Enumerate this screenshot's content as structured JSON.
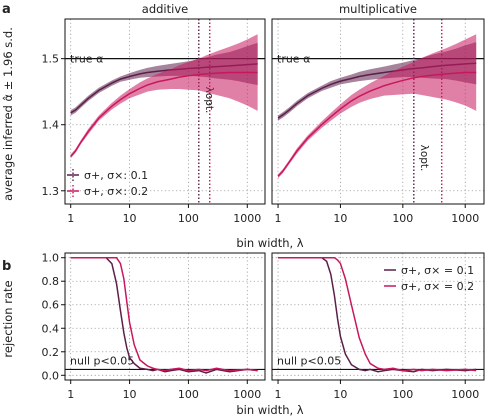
{
  "figure": {
    "panel_a_letter": "a",
    "panel_b_letter": "b",
    "facet_titles": [
      "additive",
      "multiplicative"
    ],
    "xlabel": "bin width, λ",
    "ylabel_a": "average inferred α̂ ± 1.96 s.d.",
    "ylabel_b": "rejection rate",
    "true_alpha_label": "true α",
    "null_label": "null p<0.05",
    "lambda_opt_label": "λopt.",
    "colors": {
      "dark": "#5b1f4a",
      "light": "#c8175d"
    }
  },
  "chart_data": [
    {
      "type": "line",
      "panel": "a",
      "x_scale": "log",
      "xlim": [
        0.8,
        2000
      ],
      "ylim": [
        1.28,
        1.56
      ],
      "x_ticks": [
        1,
        10,
        100,
        1000
      ],
      "x_tick_labels": [
        "1",
        "10",
        "100",
        "1000"
      ],
      "y_ticks": [
        1.3,
        1.4,
        1.5
      ],
      "y_tick_labels": [
        "1.3",
        "1.4",
        "1.5"
      ],
      "hline": 1.5,
      "legend": {
        "position": "bottom-left",
        "entries": [
          "σ+, σ×: 0.1",
          "σ+, σ×: 0.2"
        ]
      },
      "facets": [
        {
          "title": "additive",
          "lambda_opt": [
            150,
            230
          ],
          "series": [
            {
              "name": "σ+, σ×: 0.1",
              "color": "#5b1f4a",
              "x": [
                1,
                1.2,
                1.5,
                2,
                3,
                5,
                7,
                10,
                15,
                20,
                30,
                50,
                70,
                100,
                150,
                200,
                300,
                500,
                700,
                1000,
                1500
              ],
              "y": [
                1.418,
                1.422,
                1.43,
                1.44,
                1.452,
                1.463,
                1.469,
                1.473,
                1.477,
                1.479,
                1.481,
                1.483,
                1.484,
                1.485,
                1.486,
                1.487,
                1.488,
                1.489,
                1.49,
                1.491,
                1.492
              ],
              "ci": [
                0.004,
                0.004,
                0.004,
                0.004,
                0.004,
                0.004,
                0.004,
                0.005,
                0.006,
                0.007,
                0.008,
                0.009,
                0.01,
                0.011,
                0.013,
                0.015,
                0.018,
                0.021,
                0.024,
                0.028,
                0.032
              ]
            },
            {
              "name": "σ+, σ×: 0.2",
              "color": "#c8175d",
              "x": [
                1,
                1.2,
                1.5,
                2,
                3,
                5,
                7,
                10,
                15,
                20,
                30,
                50,
                70,
                100,
                150,
                200,
                300,
                500,
                700,
                1000,
                1500
              ],
              "y": [
                1.352,
                1.36,
                1.374,
                1.39,
                1.41,
                1.428,
                1.438,
                1.447,
                1.455,
                1.46,
                1.465,
                1.469,
                1.472,
                1.474,
                1.476,
                1.477,
                1.478,
                1.479,
                1.479,
                1.479,
                1.479
              ],
              "ci": [
                0.003,
                0.003,
                0.003,
                0.004,
                0.004,
                0.005,
                0.006,
                0.007,
                0.009,
                0.01,
                0.012,
                0.015,
                0.018,
                0.021,
                0.024,
                0.028,
                0.033,
                0.039,
                0.044,
                0.05,
                0.058
              ]
            }
          ]
        },
        {
          "title": "multiplicative",
          "lambda_opt": [
            150,
            420
          ],
          "series": [
            {
              "name": "σ+, σ×: 0.1",
              "color": "#5b1f4a",
              "x": [
                1,
                1.2,
                1.5,
                2,
                3,
                5,
                7,
                10,
                15,
                20,
                30,
                50,
                70,
                100,
                150,
                200,
                300,
                500,
                700,
                1000,
                1500
              ],
              "y": [
                1.41,
                1.415,
                1.422,
                1.432,
                1.444,
                1.455,
                1.461,
                1.466,
                1.47,
                1.473,
                1.476,
                1.479,
                1.481,
                1.483,
                1.485,
                1.486,
                1.488,
                1.49,
                1.491,
                1.492,
                1.493
              ],
              "ci": [
                0.004,
                0.004,
                0.004,
                0.004,
                0.004,
                0.004,
                0.005,
                0.005,
                0.006,
                0.007,
                0.008,
                0.009,
                0.01,
                0.011,
                0.013,
                0.015,
                0.018,
                0.021,
                0.024,
                0.028,
                0.032
              ]
            },
            {
              "name": "σ+, σ×: 0.2",
              "color": "#c8175d",
              "x": [
                1,
                1.2,
                1.5,
                2,
                3,
                5,
                7,
                10,
                15,
                20,
                30,
                50,
                70,
                100,
                150,
                200,
                300,
                500,
                700,
                1000,
                1500
              ],
              "y": [
                1.322,
                1.33,
                1.343,
                1.36,
                1.38,
                1.4,
                1.412,
                1.424,
                1.436,
                1.443,
                1.451,
                1.459,
                1.463,
                1.467,
                1.471,
                1.473,
                1.475,
                1.477,
                1.478,
                1.479,
                1.479
              ],
              "ci": [
                0.003,
                0.003,
                0.003,
                0.004,
                0.004,
                0.005,
                0.006,
                0.007,
                0.009,
                0.01,
                0.012,
                0.015,
                0.018,
                0.021,
                0.024,
                0.028,
                0.033,
                0.039,
                0.044,
                0.05,
                0.058
              ]
            }
          ]
        }
      ]
    },
    {
      "type": "line",
      "panel": "b",
      "x_scale": "log",
      "xlim": [
        0.8,
        2000
      ],
      "ylim": [
        -0.04,
        1.04
      ],
      "x_ticks": [
        1,
        10,
        100,
        1000
      ],
      "x_tick_labels": [
        "1",
        "10",
        "100",
        "1000"
      ],
      "y_ticks": [
        0,
        0.2,
        0.4,
        0.6,
        0.8,
        1
      ],
      "y_tick_labels": [
        "0.0",
        "0.2",
        "0.4",
        "0.6",
        "0.8",
        "1.0"
      ],
      "hline": 0.05,
      "legend": {
        "position": "top-right",
        "entries": [
          "σ+, σ× = 0.1",
          "σ+, σ× = 0.2"
        ]
      },
      "facets": [
        {
          "title": "additive",
          "series": [
            {
              "name": "σ+, σ× = 0.1",
              "color": "#5b1f4a",
              "x": [
                1,
                2,
                3,
                4,
                5,
                6,
                7,
                8,
                9,
                10,
                12,
                15,
                20,
                25,
                30,
                40,
                50,
                70,
                100,
                150,
                200,
                300,
                500,
                1000,
                1500
              ],
              "y": [
                1.0,
                1.0,
                1.0,
                1.0,
                0.95,
                0.78,
                0.55,
                0.36,
                0.23,
                0.15,
                0.1,
                0.06,
                0.05,
                0.04,
                0.05,
                0.03,
                0.04,
                0.05,
                0.03,
                0.04,
                0.02,
                0.05,
                0.03,
                0.05,
                0.04
              ]
            },
            {
              "name": "σ+, σ× = 0.2",
              "color": "#c8175d",
              "x": [
                1,
                2,
                3,
                4,
                5,
                6,
                7,
                8,
                9,
                10,
                12,
                15,
                20,
                25,
                30,
                40,
                50,
                70,
                100,
                150,
                200,
                300,
                500,
                1000,
                1500
              ],
              "y": [
                1.0,
                1.0,
                1.0,
                1.0,
                1.0,
                1.0,
                0.95,
                0.82,
                0.62,
                0.45,
                0.26,
                0.13,
                0.08,
                0.06,
                0.05,
                0.04,
                0.05,
                0.06,
                0.04,
                0.05,
                0.04,
                0.06,
                0.04,
                0.05,
                0.04
              ]
            }
          ]
        },
        {
          "title": "multiplicative",
          "series": [
            {
              "name": "σ+, σ× = 0.1",
              "color": "#5b1f4a",
              "x": [
                1,
                2,
                3,
                4,
                5,
                6,
                7,
                8,
                9,
                10,
                12,
                15,
                20,
                25,
                30,
                40,
                50,
                70,
                100,
                150,
                200,
                300,
                500,
                1000,
                1500
              ],
              "y": [
                1.0,
                1.0,
                1.0,
                1.0,
                1.0,
                0.97,
                0.86,
                0.68,
                0.48,
                0.33,
                0.18,
                0.09,
                0.05,
                0.04,
                0.05,
                0.03,
                0.04,
                0.05,
                0.04,
                0.03,
                0.05,
                0.04,
                0.05,
                0.04,
                0.05
              ]
            },
            {
              "name": "σ+, σ× = 0.2",
              "color": "#c8175d",
              "x": [
                1,
                2,
                3,
                4,
                5,
                6,
                7,
                8,
                9,
                10,
                12,
                15,
                20,
                25,
                30,
                40,
                50,
                70,
                100,
                150,
                200,
                300,
                500,
                1000,
                1500
              ],
              "y": [
                1.0,
                1.0,
                1.0,
                1.0,
                1.0,
                1.0,
                1.0,
                1.0,
                0.98,
                0.95,
                0.82,
                0.6,
                0.32,
                0.18,
                0.1,
                0.06,
                0.05,
                0.06,
                0.04,
                0.05,
                0.04,
                0.05,
                0.04,
                0.05,
                0.04
              ]
            }
          ]
        }
      ]
    }
  ]
}
